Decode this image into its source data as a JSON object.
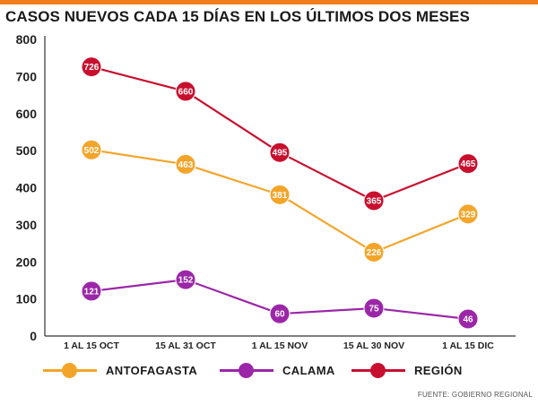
{
  "title": "CASOS NUEVOS CADA 15 DÍAS EN LOS ÚLTIMOS DOS MESES",
  "source": "FUENTE: GOBIERNO REGIONAL",
  "colors": {
    "accent": "#f07d1e",
    "antofagasta": "#f3a52a",
    "calama": "#9b27a8",
    "region": "#c8102e"
  },
  "chart_data": {
    "type": "line",
    "title": "CASOS NUEVOS CADA 15 DÍAS EN LOS ÚLTIMOS DOS MESES",
    "xlabel": "",
    "ylabel": "",
    "ylim": [
      0,
      800
    ],
    "yticks": [
      0,
      100,
      200,
      300,
      400,
      500,
      600,
      700,
      800
    ],
    "grid": false,
    "legend": "bottom",
    "categories": [
      "1 AL 15 OCT",
      "15 AL 31 OCT",
      "1 AL 15 NOV",
      "15 AL 30 NOV",
      "1 AL 15 DIC"
    ],
    "series": [
      {
        "name": "ANTOFAGASTA",
        "color": "#f3a52a",
        "values": [
          502,
          463,
          381,
          226,
          329
        ]
      },
      {
        "name": "CALAMA",
        "color": "#9b27a8",
        "values": [
          121,
          152,
          60,
          75,
          46
        ]
      },
      {
        "name": "REGIÓN",
        "color": "#c8102e",
        "values": [
          726,
          660,
          495,
          365,
          465
        ]
      }
    ]
  }
}
